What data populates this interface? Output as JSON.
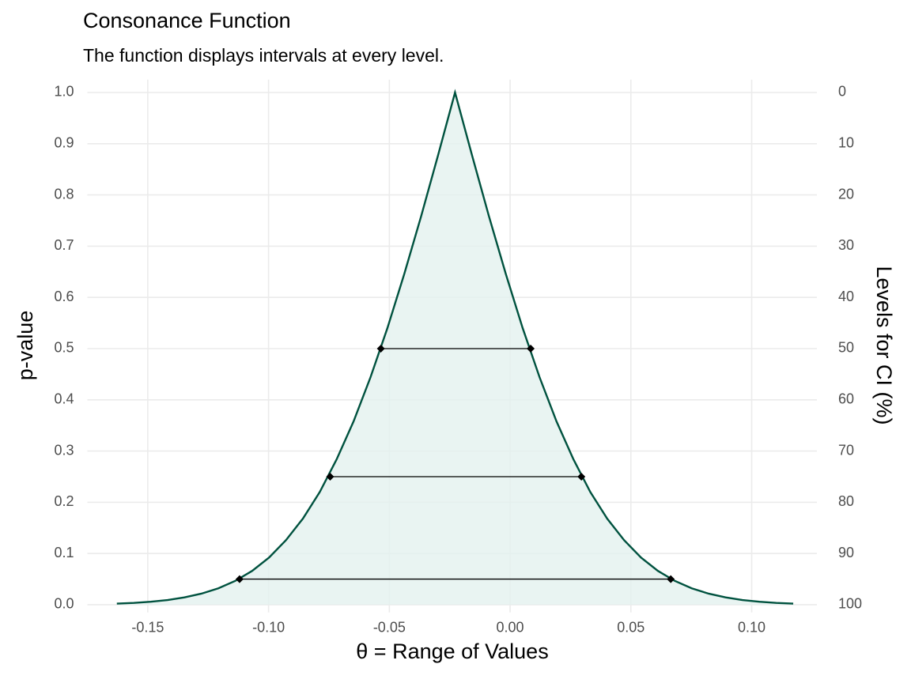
{
  "chart_data": {
    "type": "area",
    "title": "Consonance Function",
    "subtitle": "The function displays intervals at every level.",
    "xlabel": "θ =  Range of Values",
    "ylabel": "p-value",
    "y2label": "Levels for CI (%)",
    "x": [
      -0.1628,
      -0.1558,
      -0.1488,
      -0.1418,
      -0.1348,
      -0.1278,
      -0.1208,
      -0.1138,
      -0.1068,
      -0.0998,
      -0.0928,
      -0.0858,
      -0.0788,
      -0.0718,
      -0.0648,
      -0.0578,
      -0.0508,
      -0.0438,
      -0.0368,
      -0.0298,
      -0.0228,
      -0.0158,
      -0.0088,
      -0.0018,
      0.0052,
      0.0122,
      0.0192,
      0.0262,
      0.0332,
      0.0402,
      0.0472,
      0.0542,
      0.0612,
      0.0682,
      0.0752,
      0.0822,
      0.0892,
      0.0962,
      0.1032,
      0.1102,
      0.1172
    ],
    "values": [
      0.0022,
      0.0036,
      0.0058,
      0.0092,
      0.0143,
      0.0216,
      0.032,
      0.0465,
      0.066,
      0.092,
      0.126,
      0.168,
      0.22,
      0.284,
      0.358,
      0.444,
      0.54,
      0.646,
      0.759,
      0.878,
      1,
      0.878,
      0.759,
      0.646,
      0.54,
      0.444,
      0.358,
      0.284,
      0.22,
      0.168,
      0.126,
      0.092,
      0.066,
      0.0465,
      0.032,
      0.0216,
      0.0143,
      0.0092,
      0.0058,
      0.0036,
      0.0022
    ],
    "color": "#00523f",
    "fill_color": "#e3f1ef",
    "intervals": {
      "p": [
        0.5,
        0.25,
        0.05
      ],
      "lower": [
        -0.0535,
        -0.0745,
        -0.112
      ],
      "upper": [
        0.0085,
        0.0295,
        0.0665
      ],
      "color": "#000000"
    },
    "xlim": [
      -0.175,
      0.127
    ],
    "xticks": [
      {
        "value": -0.15,
        "label": "-0.15"
      },
      {
        "value": -0.1,
        "label": "-0.10"
      },
      {
        "value": -0.05,
        "label": "-0.05"
      },
      {
        "value": 0,
        "label": "0.00"
      },
      {
        "value": 0.05,
        "label": "0.05"
      },
      {
        "value": 0.1,
        "label": "0.10"
      }
    ],
    "ylim": [
      -0.015,
      1.025
    ],
    "yticks": [
      {
        "value": 0,
        "label": "0.0"
      },
      0.1,
      0.2,
      0.3,
      0.4,
      0.5,
      0.6,
      0.7,
      0.8,
      0.9,
      {
        "value": 1,
        "label": "1.0"
      }
    ],
    "y2lim": [
      101.5,
      -2.5
    ],
    "y2ticks": [
      0,
      10,
      20,
      30,
      40,
      50,
      60,
      70,
      80,
      90,
      100
    ],
    "grid": true
  }
}
